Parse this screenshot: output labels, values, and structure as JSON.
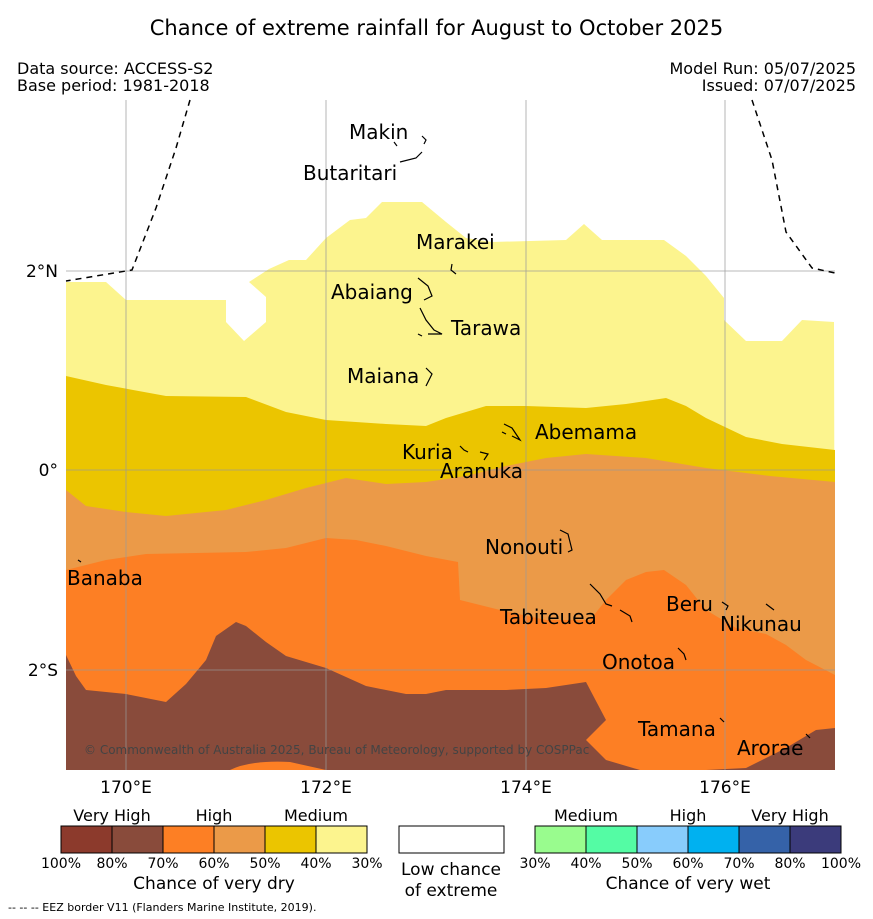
{
  "title": "Chance of extreme rainfall for August to October 2025",
  "data_source": "Data source: ACCESS-S2",
  "base_period": "Base period: 1981-2018",
  "model_run": "Model Run: 05/07/2025",
  "issued": "Issued: 07/07/2025",
  "axes": {
    "lat_ticks": [
      "2°N",
      "0°",
      "2°S"
    ],
    "lon_ticks": [
      "170°E",
      "172°E",
      "174°E",
      "176°E"
    ]
  },
  "places": [
    {
      "name": "Makin"
    },
    {
      "name": "Butaritari"
    },
    {
      "name": "Marakei"
    },
    {
      "name": "Abaiang"
    },
    {
      "name": "Tarawa"
    },
    {
      "name": "Maiana"
    },
    {
      "name": "Abemama"
    },
    {
      "name": "Kuria"
    },
    {
      "name": "Aranuka"
    },
    {
      "name": "Nonouti"
    },
    {
      "name": "Banaba"
    },
    {
      "name": "Tabiteuea"
    },
    {
      "name": "Beru"
    },
    {
      "name": "Nikunau"
    },
    {
      "name": "Onotoa"
    },
    {
      "name": "Tamana"
    },
    {
      "name": "Arorae"
    }
  ],
  "credit": "© Commonwealth of Australia 2025, Bureau of Meteorology, supported by COSPPac",
  "legend": {
    "dry": {
      "categories": [
        "Very High",
        "High",
        "Medium"
      ],
      "ticks": [
        "100%",
        "80%",
        "70%",
        "60%",
        "50%",
        "40%",
        "30%"
      ],
      "colors": [
        "#8c3a2c",
        "#894b3b",
        "#fd7f24",
        "#eb9a48",
        "#ebc500",
        "#fcf48e"
      ],
      "title": "Chance of very dry"
    },
    "low": {
      "title_line1": "Low chance",
      "title_line2": "of extreme",
      "color": "#ffffff"
    },
    "wet": {
      "categories": [
        "Medium",
        "High",
        "Very High"
      ],
      "ticks": [
        "30%",
        "40%",
        "50%",
        "60%",
        "70%",
        "80%",
        "100%"
      ],
      "colors": [
        "#99fc8e",
        "#54fca4",
        "#88ccfc",
        "#00b1f0",
        "#3562a8",
        "#3b3b7b"
      ],
      "title": "Chance of very wet"
    }
  },
  "footnote": "--  --  -- EEZ border V11 (Flanders Marine Institute, 2019)."
}
